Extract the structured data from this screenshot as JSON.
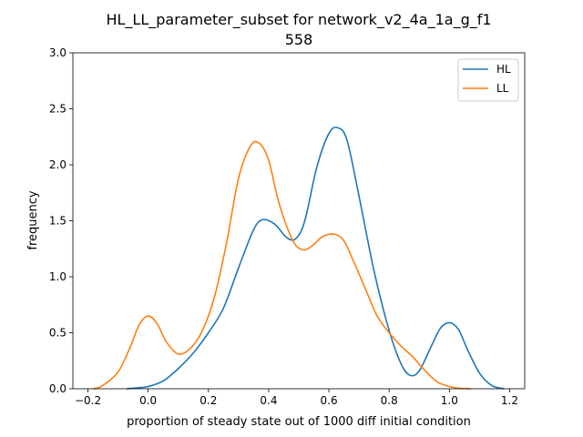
{
  "chart_data": {
    "type": "line",
    "title_line1": "HL_LL_parameter_subset for network_v2_4a_1a_g_f1",
    "title_line2": "558",
    "xlabel": "proportion of steady state out of 1000 diff initial condition",
    "ylabel": "frequency",
    "xlim": [
      -0.25,
      1.25
    ],
    "ylim": [
      0.0,
      3.0
    ],
    "xticks": [
      -0.2,
      0.0,
      0.2,
      0.4,
      0.6,
      0.8,
      1.0,
      1.2
    ],
    "xtick_labels": [
      "−0.2",
      "0.0",
      "0.2",
      "0.4",
      "0.6",
      "0.8",
      "1.0",
      "1.2"
    ],
    "yticks": [
      0.0,
      0.5,
      1.0,
      1.5,
      2.0,
      2.5,
      3.0
    ],
    "ytick_labels": [
      "0.0",
      "0.5",
      "1.0",
      "1.5",
      "2.0",
      "2.5",
      "3.0"
    ],
    "grid": false,
    "legend_position": "top-right",
    "series": [
      {
        "name": "HL",
        "color": "#1f77b4",
        "x": [
          -0.07,
          -0.03,
          0.0,
          0.05,
          0.1,
          0.15,
          0.2,
          0.25,
          0.3,
          0.35,
          0.38,
          0.42,
          0.46,
          0.49,
          0.52,
          0.56,
          0.6,
          0.63,
          0.66,
          0.7,
          0.75,
          0.8,
          0.84,
          0.87,
          0.9,
          0.94,
          0.97,
          1.0,
          1.03,
          1.06,
          1.1,
          1.14,
          1.18
        ],
        "y": [
          0.0,
          0.01,
          0.02,
          0.07,
          0.18,
          0.32,
          0.5,
          0.72,
          1.08,
          1.42,
          1.51,
          1.47,
          1.35,
          1.34,
          1.5,
          1.98,
          2.28,
          2.33,
          2.22,
          1.72,
          1.05,
          0.52,
          0.22,
          0.12,
          0.16,
          0.38,
          0.54,
          0.59,
          0.53,
          0.35,
          0.14,
          0.03,
          0.0
        ]
      },
      {
        "name": "LL",
        "color": "#ff7f0e",
        "x": [
          -0.18,
          -0.15,
          -0.1,
          -0.06,
          -0.03,
          0.0,
          0.03,
          0.06,
          0.1,
          0.14,
          0.18,
          0.22,
          0.26,
          0.3,
          0.34,
          0.37,
          0.4,
          0.43,
          0.46,
          0.49,
          0.52,
          0.55,
          0.58,
          0.62,
          0.65,
          0.68,
          0.72,
          0.76,
          0.8,
          0.84,
          0.88,
          0.92,
          0.96,
          1.0,
          1.03,
          1.07
        ],
        "y": [
          0.0,
          0.03,
          0.15,
          0.37,
          0.57,
          0.65,
          0.58,
          0.42,
          0.31,
          0.36,
          0.52,
          0.82,
          1.3,
          1.88,
          2.17,
          2.19,
          2.04,
          1.7,
          1.45,
          1.28,
          1.24,
          1.29,
          1.36,
          1.38,
          1.32,
          1.15,
          0.9,
          0.65,
          0.5,
          0.38,
          0.28,
          0.16,
          0.06,
          0.02,
          0.005,
          0.0
        ]
      }
    ]
  }
}
